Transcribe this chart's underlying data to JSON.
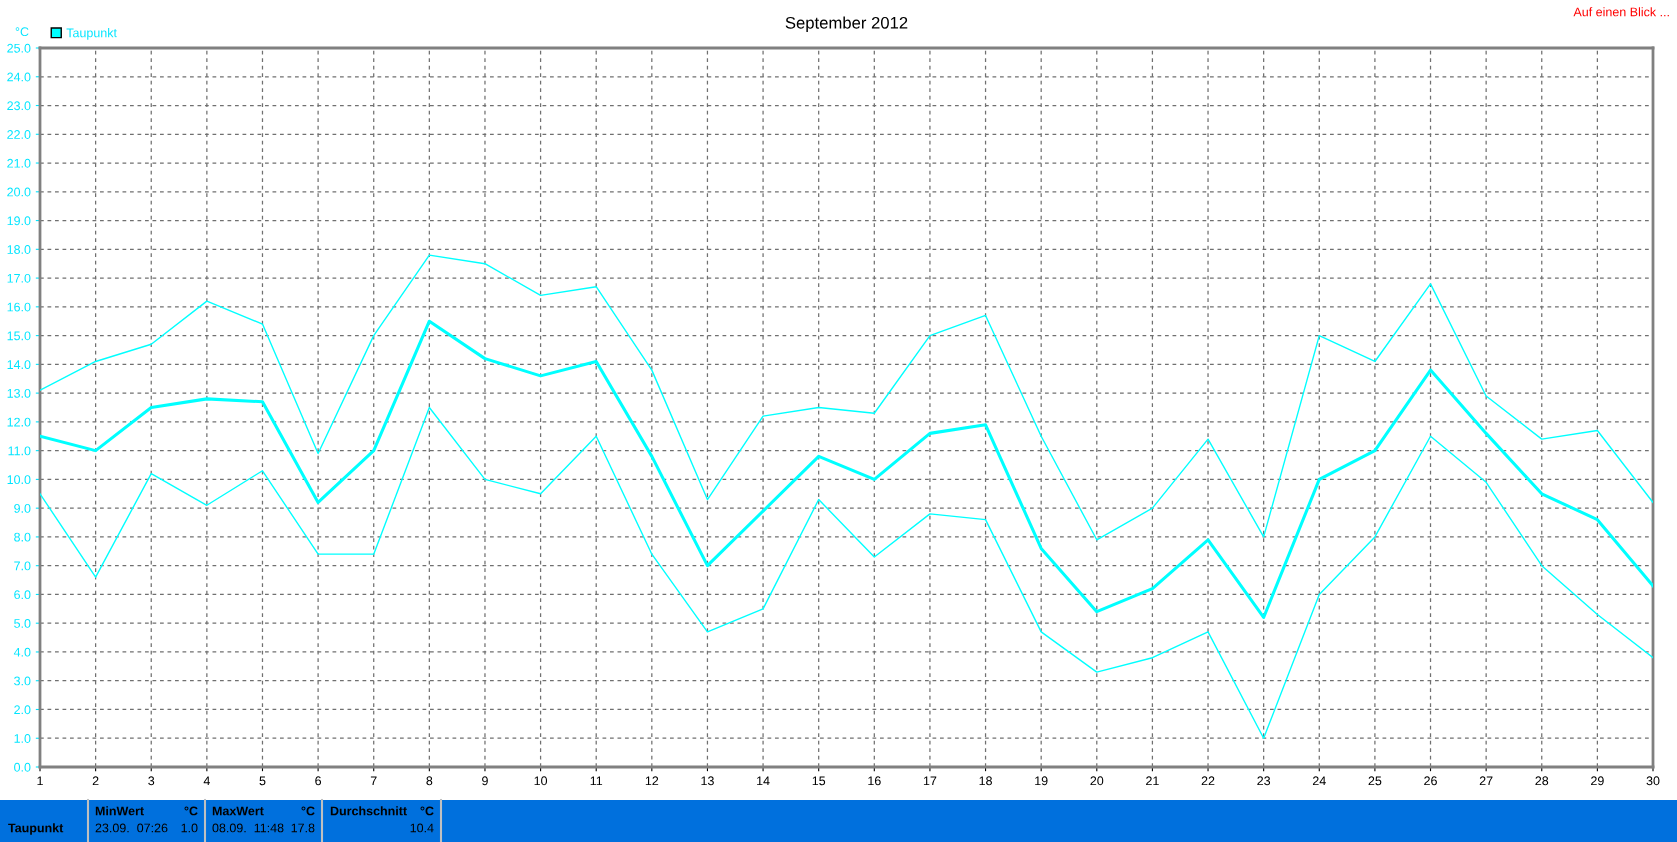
{
  "chart_data": {
    "type": "line",
    "title": "September 2012",
    "ylabel": "°C",
    "x": [
      1,
      2,
      3,
      4,
      5,
      6,
      7,
      8,
      9,
      10,
      11,
      12,
      13,
      14,
      15,
      16,
      17,
      18,
      19,
      20,
      21,
      22,
      23,
      24,
      25,
      26,
      27,
      28,
      29,
      30
    ],
    "series": [
      {
        "color": "#00ffff",
        "values": [
          13.1,
          14.1,
          14.7,
          16.2,
          15.4,
          10.9,
          15.0,
          17.8,
          17.5,
          16.4,
          16.7,
          13.8,
          9.3,
          12.2,
          12.5,
          12.3,
          15.0,
          15.7,
          11.5,
          7.9,
          9.0,
          11.4,
          8.0,
          15.0,
          14.1,
          16.8,
          12.9,
          11.4,
          11.7,
          9.2
        ]
      },
      {
        "name": "Taupunkt",
        "color": "#00ffff",
        "values": [
          11.5,
          11.0,
          12.5,
          12.8,
          12.7,
          9.2,
          11.0,
          15.5,
          14.2,
          13.6,
          14.1,
          10.8,
          7.0,
          8.9,
          10.8,
          10.0,
          11.6,
          11.9,
          7.6,
          5.4,
          6.2,
          7.9,
          5.2,
          10.0,
          11.0,
          13.8,
          11.6,
          9.5,
          8.6,
          6.3
        ]
      },
      {
        "color": "#00ffff",
        "values": [
          9.5,
          6.6,
          10.2,
          9.1,
          10.3,
          7.4,
          7.4,
          12.5,
          10.0,
          9.5,
          11.5,
          7.4,
          4.7,
          5.5,
          9.3,
          7.3,
          8.8,
          8.6,
          4.7,
          3.3,
          3.8,
          4.7,
          1.0,
          6.0,
          8.0,
          11.5,
          9.9,
          7.0,
          5.3,
          3.8
        ]
      }
    ],
    "xlim": [
      1,
      30
    ],
    "xticks": [
      1,
      2,
      3,
      4,
      5,
      6,
      7,
      8,
      9,
      10,
      11,
      12,
      13,
      14,
      15,
      16,
      17,
      18,
      19,
      20,
      21,
      22,
      23,
      24,
      25,
      26,
      27,
      28,
      29,
      30
    ],
    "ylim": [
      0,
      25
    ],
    "yticks": [
      {
        "value": 0,
        "label": "0.0"
      },
      {
        "value": 1,
        "label": "1.0"
      },
      {
        "value": 2,
        "label": "2.0"
      },
      {
        "value": 3,
        "label": "3.0"
      },
      {
        "value": 4,
        "label": "4.0"
      },
      {
        "value": 5,
        "label": "5.0"
      },
      {
        "value": 6,
        "label": "6.0"
      },
      {
        "value": 7,
        "label": "7.0"
      },
      {
        "value": 8,
        "label": "8.0"
      },
      {
        "value": 9,
        "label": "9.0"
      },
      {
        "value": 10,
        "label": "10.0"
      },
      {
        "value": 11,
        "label": "11.0"
      },
      {
        "value": 12,
        "label": "12.0"
      },
      {
        "value": 13,
        "label": "13.0"
      },
      {
        "value": 14,
        "label": "14.0"
      },
      {
        "value": 15,
        "label": "15.0"
      },
      {
        "value": 16,
        "label": "16.0"
      },
      {
        "value": 17,
        "label": "17.0"
      },
      {
        "value": 18,
        "label": "18.0"
      },
      {
        "value": 19,
        "label": "19.0"
      },
      {
        "value": 20,
        "label": "20.0"
      },
      {
        "value": 21,
        "label": "21.0"
      },
      {
        "value": 22,
        "label": "22.0"
      },
      {
        "value": 23,
        "label": "23.0"
      },
      {
        "value": 24,
        "label": "24.0"
      },
      {
        "value": 25,
        "label": "25.0"
      }
    ],
    "grid": true,
    "legend": "top left",
    "marker": "none",
    "line_style": "solid",
    "annotations": [
      "Auf einen Blick ...",
      "Taupunkt",
      "MinWert",
      "°C",
      "23.09.  07:26",
      "1.0",
      "MaxWert",
      "°C",
      "08.09.  11:48",
      "17.8",
      "Durchschnitt",
      "°C",
      "10.4"
    ]
  }
}
